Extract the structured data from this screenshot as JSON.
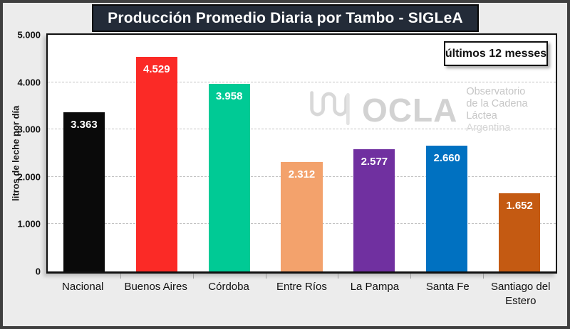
{
  "title": "Producción Promedio Diaria por Tambo - SIGLeA",
  "badge": "últimos 12 messes",
  "watermark": {
    "acronym": "OCLA",
    "line1": "Observatorio",
    "line2": "de la Cadena Láctea",
    "line3": "Argentina"
  },
  "colors": {
    "page_bg": "#ececec",
    "frame_border": "#3f3f3f",
    "title_bg": "#232b38",
    "plot_bg": "#ffffff",
    "grid": "#c2c2c2",
    "watermark_gray": "#d2d2d2"
  },
  "chart_data": {
    "type": "bar",
    "title": "Producción Promedio Diaria por Tambo - SIGLeA",
    "annotation": "últimos 12 messes",
    "categories": [
      "Nacional",
      "Buenos Aires",
      "Córdoba",
      "Entre Ríos",
      "La Pampa",
      "Santa Fe",
      "Santiago del Estero"
    ],
    "values": [
      3363,
      4529,
      3958,
      2312,
      2577,
      2660,
      1652
    ],
    "value_labels": [
      "3.363",
      "4.529",
      "3.958",
      "2.312",
      "2.577",
      "2.660",
      "1.652"
    ],
    "bar_colors": [
      "#0a0a0a",
      "#fb2a26",
      "#00ca95",
      "#f3a26c",
      "#7030a0",
      "#0071c1",
      "#c45a12"
    ],
    "xlabel": "",
    "ylabel": "litros de leche por día",
    "ylim": [
      0,
      5000
    ],
    "yticks": [
      0,
      1000,
      2000,
      3000,
      4000,
      5000
    ],
    "ytick_labels": [
      "0",
      "1.000",
      "2.000",
      "3.000",
      "4.000",
      "5.000"
    ],
    "grid": "horizontal-dashed",
    "legend": "none"
  }
}
